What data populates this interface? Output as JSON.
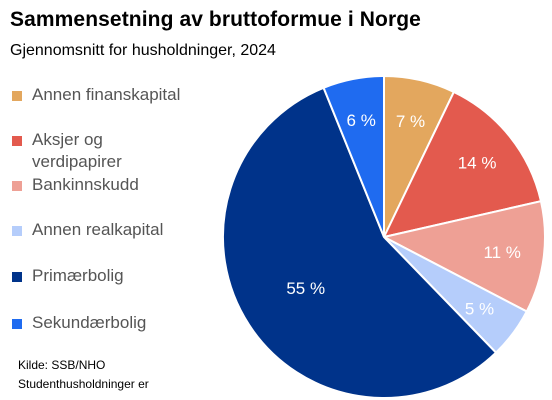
{
  "header": {
    "title": "Sammensetning av bruttoformue i Norge",
    "subtitle": "Gjennomsnitt for husholdninger, 2024"
  },
  "chart_data": {
    "type": "pie",
    "title": "Sammensetning av bruttoformue i Norge",
    "subtitle": "Gjennomsnitt for husholdninger, 2024",
    "unit": "%",
    "legend_position": "left",
    "slices": [
      {
        "name": "Annen finanskapital",
        "value": 7,
        "label": "7 %",
        "color": "#E3A75E"
      },
      {
        "name": "Aksjer og verdipapirer",
        "value": 14,
        "label": "14 %",
        "color": "#E35A4E"
      },
      {
        "name": "Bankinnskudd",
        "value": 11,
        "label": "11 %",
        "color": "#EEA095"
      },
      {
        "name": "Annen realkapital",
        "value": 5,
        "label": "5 %",
        "color": "#B5CDFB"
      },
      {
        "name": "Primærbolig",
        "value": 55,
        "label": "55 %",
        "color": "#00338A"
      },
      {
        "name": "Sekundærbolig",
        "value": 6,
        "label": "6 %",
        "color": "#1F6BF0"
      }
    ]
  },
  "legend": {
    "items": [
      {
        "label": "Annen finanskapital",
        "color": "#E3A75E"
      },
      {
        "label": "Aksjer og verdipapirer",
        "color": "#E35A4E"
      },
      {
        "label": "Bankinnskudd",
        "color": "#EEA095"
      },
      {
        "label": "Annen realkapital",
        "color": "#B5CDFB"
      },
      {
        "label": "Primærbolig",
        "color": "#00338A"
      },
      {
        "label": "Sekundærbolig",
        "color": "#1F6BF0"
      }
    ]
  },
  "source": {
    "line1": "Kilde: SSB/NHO",
    "line2": "Studenthusholdninger er"
  }
}
